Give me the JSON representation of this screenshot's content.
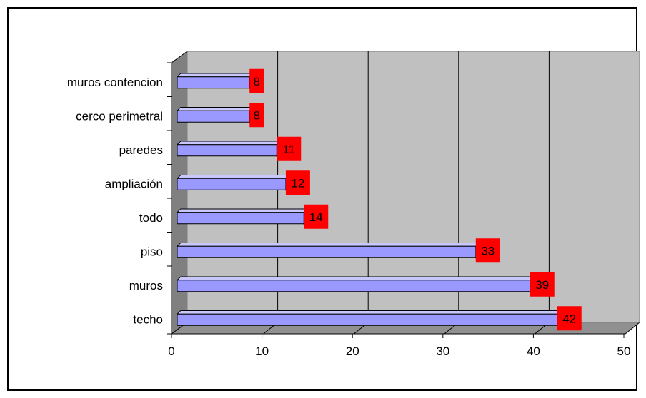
{
  "chart_data": {
    "type": "bar",
    "orientation": "horizontal",
    "title": "",
    "xlabel": "",
    "ylabel": "",
    "categories": [
      "techo",
      "muros",
      "piso",
      "todo",
      "ampliación",
      "paredes",
      "cerco perimetral",
      "muros contencion"
    ],
    "values": [
      42,
      39,
      33,
      14,
      12,
      11,
      8,
      8
    ],
    "xlim": [
      0,
      50
    ],
    "xticks": [
      0,
      10,
      20,
      30,
      40,
      50
    ],
    "grid": true,
    "legend": "none",
    "style": "3d",
    "colors": {
      "bar": "#9999FF",
      "bar_top": "#C8C8FF",
      "bar_end": "#6666CC",
      "label_bg": "#FF0000",
      "plot_bg": "#C0C0C0",
      "side_wall": "#808080"
    }
  }
}
